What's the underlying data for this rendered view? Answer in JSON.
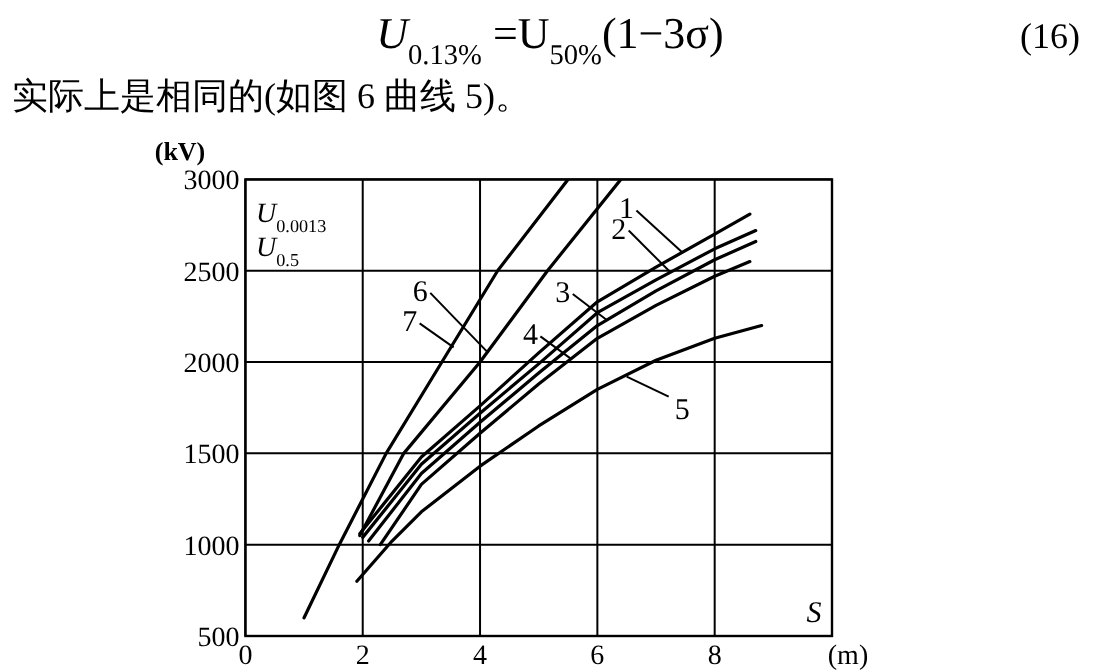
{
  "chart_data": {
    "type": "line",
    "ylabel": "(kV)",
    "xlabel": "(m)",
    "xlim": [
      0,
      10
    ],
    "ylim": [
      500,
      3000
    ],
    "xticks": [
      0,
      2,
      4,
      6,
      8
    ],
    "yticks": [
      500,
      1000,
      1500,
      2000,
      2500,
      3000
    ],
    "grid": true,
    "marker": "none",
    "line_style": "solid",
    "series": [
      {
        "color": "#000000",
        "x": [
          1.95,
          3,
          4,
          5,
          6,
          7,
          8,
          8.6
        ],
        "values": [
          1060,
          1480,
          1760,
          2050,
          2330,
          2520,
          2700,
          2810
        ]
      },
      {
        "color": "#000000",
        "x": [
          2.0,
          3,
          4,
          5,
          6,
          7,
          8,
          8.7
        ],
        "values": [
          1040,
          1440,
          1720,
          1990,
          2270,
          2450,
          2620,
          2720
        ]
      },
      {
        "color": "#000000",
        "x": [
          2.1,
          3,
          4,
          5,
          6,
          7,
          8,
          8.7
        ],
        "values": [
          1020,
          1390,
          1670,
          1940,
          2200,
          2390,
          2560,
          2660
        ]
      },
      {
        "color": "#000000",
        "x": [
          2.3,
          3,
          4,
          5,
          6,
          7,
          8,
          8.6
        ],
        "values": [
          1000,
          1330,
          1610,
          1880,
          2130,
          2310,
          2470,
          2550
        ]
      },
      {
        "color": "#000000",
        "x": [
          1.9,
          2.5,
          3,
          4,
          5,
          6,
          7,
          8,
          8.8
        ],
        "values": [
          800,
          1020,
          1180,
          1430,
          1650,
          1850,
          2010,
          2130,
          2200
        ]
      },
      {
        "color": "#000000",
        "x": [
          1.95,
          2.7,
          4.0,
          5.15,
          6.4
        ],
        "values": [
          1050,
          1500,
          2000,
          2500,
          3000
        ]
      },
      {
        "color": "#000000",
        "x": [
          1.0,
          1.6,
          2.4,
          3.35,
          4.3,
          5.5
        ],
        "values": [
          600,
          1000,
          1500,
          2000,
          2500,
          3000
        ]
      }
    ],
    "annotations": [
      "U$_{0.13%}$ =U$_{50%}$(1−3σ)",
      "(16)",
      "实际上是相同的(如图 6 曲线 5)。",
      "U$_{0.0013}$",
      "U$_{0.5}$",
      "S",
      {
        "text": "1",
        "x": 7.45,
        "y": 2600
      },
      {
        "text": "2",
        "x": 7.25,
        "y": 2490
      },
      {
        "text": "3",
        "x": 6.16,
        "y": 2230
      },
      {
        "text": "4",
        "x": 5.54,
        "y": 2020
      },
      {
        "text": "5",
        "x": 6.5,
        "y": 1920
      },
      {
        "text": "6",
        "x": 4.14,
        "y": 2050
      },
      {
        "text": "7",
        "x": 3.55,
        "y": 2080
      }
    ]
  }
}
